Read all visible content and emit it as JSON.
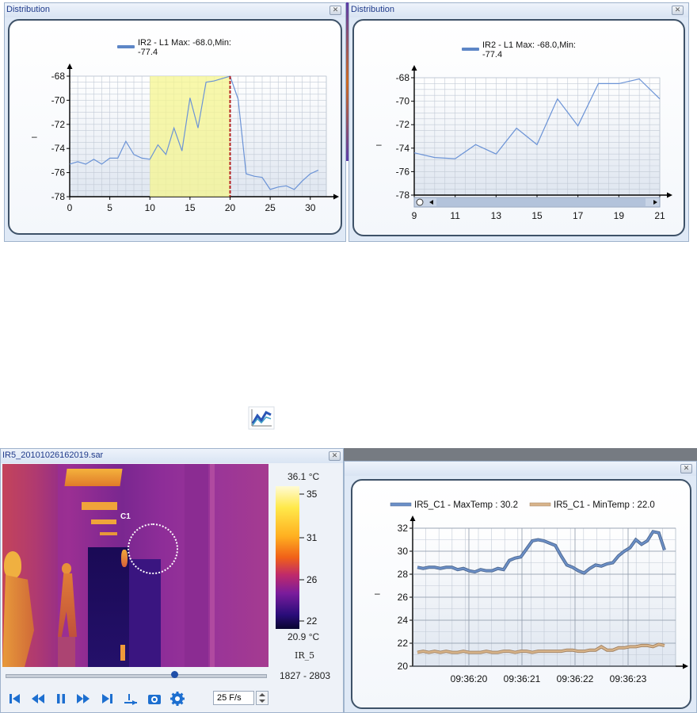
{
  "win1": {
    "title": "Distribution",
    "legend_line1": "IR2 - L1 Max: -68.0,Min:",
    "legend_line2": "-77.4",
    "ylabel": "–",
    "close": "✕"
  },
  "win2": {
    "title": "Distribution",
    "legend_line1": "IR2 - L1 Max: -68.0,Min:",
    "legend_line2": "-77.4",
    "ylabel": "–",
    "close": "✕"
  },
  "win3": {
    "title": "IR5_20101026162019.sar",
    "close": "✕",
    "scale_max": "36.1 °C",
    "scale_min": "20.9 °C",
    "scale_ticks": [
      "35",
      "31",
      "26",
      "22"
    ],
    "camera_label": "IR_5",
    "frame_range": "1827 - 2803",
    "marker_label": "C1",
    "fps": "25 F/s",
    "playback_position": 0.65
  },
  "win4": {
    "close": "✕",
    "ylabel": "–"
  },
  "chart_data": [
    {
      "type": "line",
      "x": [
        0,
        1,
        2,
        3,
        4,
        5,
        6,
        7,
        8,
        9,
        10,
        11,
        12,
        13,
        14,
        15,
        16,
        17,
        18,
        19,
        20,
        21,
        22,
        23,
        24,
        25,
        26,
        27,
        28,
        29,
        30,
        31
      ],
      "series": [
        {
          "name": "IR2 - L1",
          "values": [
            -75.3,
            -75.1,
            -75.3,
            -74.9,
            -75.3,
            -74.8,
            -74.8,
            -73.4,
            -74.5,
            -74.8,
            -74.9,
            -73.7,
            -74.5,
            -72.3,
            -74.2,
            -69.8,
            -72.3,
            -68.5,
            -68.4,
            -68.2,
            -68.0,
            -69.9,
            -76.1,
            -76.3,
            -76.4,
            -77.4,
            -77.2,
            -77.1,
            -77.4,
            -76.7,
            -76.1,
            -75.8
          ]
        }
      ],
      "xlim": [
        0,
        32
      ],
      "ylim": [
        -78,
        -68
      ],
      "xticks": [
        0,
        5,
        10,
        15,
        20,
        25,
        30
      ],
      "yticks": [
        -68,
        -70,
        -72,
        -74,
        -76,
        -78
      ],
      "highlight_range": [
        10,
        20
      ],
      "marker_x": 20,
      "legend": "top",
      "grid": true
    },
    {
      "type": "line",
      "x": [
        9,
        10,
        11,
        12,
        13,
        14,
        15,
        16,
        17,
        18,
        19,
        20,
        21
      ],
      "series": [
        {
          "name": "IR2 - L1",
          "values": [
            -74.4,
            -74.8,
            -74.9,
            -73.7,
            -74.5,
            -72.3,
            -73.7,
            -69.8,
            -72.1,
            -68.5,
            -68.5,
            -68.1,
            -69.8
          ]
        }
      ],
      "xlim": [
        9,
        21
      ],
      "ylim": [
        -78,
        -68
      ],
      "xticks": [
        9,
        11,
        13,
        15,
        17,
        19,
        21
      ],
      "yticks": [
        -68,
        -70,
        -72,
        -74,
        -76,
        -78
      ],
      "scrollbar": true,
      "legend": "top",
      "grid": true
    },
    {
      "type": "line",
      "x_labels": [
        "09:36:20",
        "09:36:21",
        "09:36:22",
        "09:36:23"
      ],
      "series": [
        {
          "name": "IR5_C1 - MaxTemp : 30.2",
          "color": "#6b8fc7",
          "values": [
            28.6,
            28.5,
            28.6,
            28.6,
            28.5,
            28.6,
            28.6,
            28.4,
            28.5,
            28.3,
            28.2,
            28.4,
            28.3,
            28.3,
            28.5,
            28.4,
            29.2,
            29.4,
            29.5,
            30.2,
            30.9,
            31.0,
            30.9,
            30.7,
            30.5,
            29.6,
            28.8,
            28.6,
            28.3,
            28.1,
            28.5,
            28.8,
            28.7,
            28.9,
            29.0,
            29.6,
            30.0,
            30.3,
            31.0,
            30.6,
            30.9,
            31.7,
            31.6,
            30.1
          ]
        },
        {
          "name": "IR5_C1 - MinTemp : 22.0",
          "color": "#d8b48a",
          "values": [
            21.2,
            21.3,
            21.2,
            21.3,
            21.2,
            21.3,
            21.2,
            21.2,
            21.3,
            21.2,
            21.2,
            21.2,
            21.3,
            21.2,
            21.2,
            21.3,
            21.3,
            21.2,
            21.3,
            21.3,
            21.2,
            21.3,
            21.3,
            21.3,
            21.3,
            21.3,
            21.4,
            21.4,
            21.3,
            21.3,
            21.4,
            21.4,
            21.7,
            21.4,
            21.4,
            21.6,
            21.6,
            21.7,
            21.7,
            21.8,
            21.8,
            21.7,
            21.9,
            21.8
          ]
        }
      ],
      "ylim": [
        20,
        32
      ],
      "yticks": [
        32,
        30,
        28,
        26,
        24,
        22,
        20
      ],
      "legend": "top",
      "grid": true
    }
  ]
}
